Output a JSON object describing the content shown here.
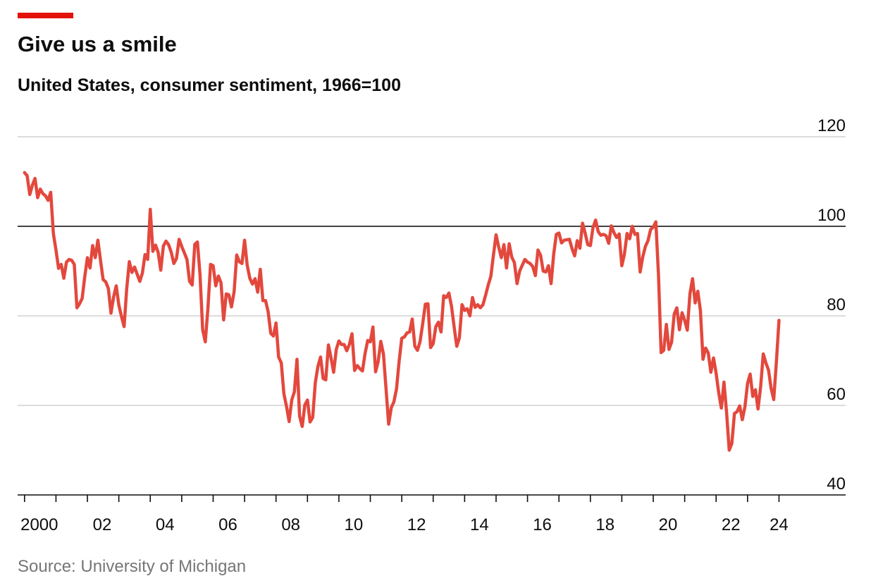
{
  "chart_data": {
    "type": "line",
    "title": "Give us a smile",
    "subtitle": "United States, consumer sentiment, 1966=100",
    "source": "Source: University of Michigan",
    "xlim": [
      1999.78,
      2026.12
    ],
    "ylim": [
      40,
      120
    ],
    "yticks": [
      40,
      60,
      80,
      100,
      120
    ],
    "reference_line": 100,
    "grid": true,
    "xticks": [
      {
        "value": 2000,
        "label": "2000"
      },
      {
        "value": 2002,
        "label": "02"
      },
      {
        "value": 2004,
        "label": "04"
      },
      {
        "value": 2006,
        "label": "06"
      },
      {
        "value": 2008,
        "label": "08"
      },
      {
        "value": 2010,
        "label": "10"
      },
      {
        "value": 2012,
        "label": "12"
      },
      {
        "value": 2014,
        "label": "14"
      },
      {
        "value": 2016,
        "label": "16"
      },
      {
        "value": 2018,
        "label": "18"
      },
      {
        "value": 2020,
        "label": "20"
      },
      {
        "value": 2022,
        "label": "22"
      },
      {
        "value": 2024,
        "label": "24"
      }
    ],
    "xminorticks": [
      2001,
      2003,
      2005,
      2007,
      2009,
      2011,
      2013,
      2015,
      2017,
      2019,
      2021,
      2023
    ],
    "x": [
      2000.0,
      2000.083,
      2000.167,
      2000.25,
      2000.333,
      2000.417,
      2000.5,
      2000.583,
      2000.667,
      2000.75,
      2000.833,
      2000.917,
      2001.0,
      2001.083,
      2001.167,
      2001.25,
      2001.333,
      2001.417,
      2001.5,
      2001.583,
      2001.667,
      2001.75,
      2001.833,
      2001.917,
      2002.0,
      2002.083,
      2002.167,
      2002.25,
      2002.333,
      2002.417,
      2002.5,
      2002.583,
      2002.667,
      2002.75,
      2002.833,
      2002.917,
      2003.0,
      2003.083,
      2003.167,
      2003.25,
      2003.333,
      2003.417,
      2003.5,
      2003.583,
      2003.667,
      2003.75,
      2003.833,
      2003.917,
      2004.0,
      2004.083,
      2004.167,
      2004.25,
      2004.333,
      2004.417,
      2004.5,
      2004.583,
      2004.667,
      2004.75,
      2004.833,
      2004.917,
      2005.0,
      2005.083,
      2005.167,
      2005.25,
      2005.333,
      2005.417,
      2005.5,
      2005.583,
      2005.667,
      2005.75,
      2005.833,
      2005.917,
      2006.0,
      2006.083,
      2006.167,
      2006.25,
      2006.333,
      2006.417,
      2006.5,
      2006.583,
      2006.667,
      2006.75,
      2006.833,
      2006.917,
      2007.0,
      2007.083,
      2007.167,
      2007.25,
      2007.333,
      2007.417,
      2007.5,
      2007.583,
      2007.667,
      2007.75,
      2007.833,
      2007.917,
      2008.0,
      2008.083,
      2008.167,
      2008.25,
      2008.333,
      2008.417,
      2008.5,
      2008.583,
      2008.667,
      2008.75,
      2008.833,
      2008.917,
      2009.0,
      2009.083,
      2009.167,
      2009.25,
      2009.333,
      2009.417,
      2009.5,
      2009.583,
      2009.667,
      2009.75,
      2009.833,
      2009.917,
      2010.0,
      2010.083,
      2010.167,
      2010.25,
      2010.333,
      2010.417,
      2010.5,
      2010.583,
      2010.667,
      2010.75,
      2010.833,
      2010.917,
      2011.0,
      2011.083,
      2011.167,
      2011.25,
      2011.333,
      2011.417,
      2011.5,
      2011.583,
      2011.667,
      2011.75,
      2011.833,
      2011.917,
      2012.0,
      2012.083,
      2012.167,
      2012.25,
      2012.333,
      2012.417,
      2012.5,
      2012.583,
      2012.667,
      2012.75,
      2012.833,
      2012.917,
      2013.0,
      2013.083,
      2013.167,
      2013.25,
      2013.333,
      2013.417,
      2013.5,
      2013.583,
      2013.667,
      2013.75,
      2013.833,
      2013.917,
      2014.0,
      2014.083,
      2014.167,
      2014.25,
      2014.333,
      2014.417,
      2014.5,
      2014.583,
      2014.667,
      2014.75,
      2014.833,
      2014.917,
      2015.0,
      2015.083,
      2015.167,
      2015.25,
      2015.333,
      2015.417,
      2015.5,
      2015.583,
      2015.667,
      2015.75,
      2015.833,
      2015.917,
      2016.0,
      2016.083,
      2016.167,
      2016.25,
      2016.333,
      2016.417,
      2016.5,
      2016.583,
      2016.667,
      2016.75,
      2016.833,
      2016.917,
      2017.0,
      2017.083,
      2017.167,
      2017.25,
      2017.333,
      2017.417,
      2017.5,
      2017.583,
      2017.667,
      2017.75,
      2017.833,
      2017.917,
      2018.0,
      2018.083,
      2018.167,
      2018.25,
      2018.333,
      2018.417,
      2018.5,
      2018.583,
      2018.667,
      2018.75,
      2018.833,
      2018.917,
      2019.0,
      2019.083,
      2019.167,
      2019.25,
      2019.333,
      2019.417,
      2019.5,
      2019.583,
      2019.667,
      2019.75,
      2019.833,
      2019.917,
      2020.0,
      2020.083,
      2020.167,
      2020.25,
      2020.333,
      2020.417,
      2020.5,
      2020.583,
      2020.667,
      2020.75,
      2020.833,
      2020.917,
      2021.0,
      2021.083,
      2021.167,
      2021.25,
      2021.333,
      2021.417,
      2021.5,
      2021.583,
      2021.667,
      2021.75,
      2021.833,
      2021.917,
      2022.0,
      2022.083,
      2022.167,
      2022.25,
      2022.333,
      2022.417,
      2022.5,
      2022.583,
      2022.667,
      2022.75,
      2022.833,
      2022.917,
      2023.0,
      2023.083,
      2023.167,
      2023.25,
      2023.333,
      2023.417,
      2023.5,
      2023.583,
      2023.667,
      2023.75,
      2023.833,
      2023.917,
      2024.0
    ],
    "series": [
      {
        "color": "#e3483d",
        "values": [
          112.0,
          111.3,
          107.1,
          109.2,
          110.7,
          106.4,
          108.3,
          107.3,
          106.8,
          105.8,
          107.6,
          98.4,
          94.7,
          90.6,
          91.5,
          88.4,
          92.0,
          92.6,
          92.4,
          91.5,
          81.8,
          82.7,
          83.9,
          88.8,
          93.0,
          90.7,
          95.7,
          93.0,
          96.9,
          92.4,
          88.1,
          87.6,
          86.1,
          80.6,
          84.2,
          86.7,
          82.4,
          79.9,
          77.6,
          86.0,
          92.1,
          89.7,
          90.9,
          89.3,
          87.7,
          89.6,
          93.7,
          92.6,
          103.8,
          94.4,
          95.8,
          94.2,
          90.2,
          95.6,
          96.7,
          95.9,
          94.2,
          91.7,
          92.8,
          97.1,
          95.5,
          94.1,
          92.6,
          87.7,
          86.9,
          96.0,
          96.5,
          89.1,
          76.9,
          74.2,
          81.6,
          91.5,
          91.2,
          86.7,
          88.9,
          87.4,
          79.1,
          84.9,
          84.7,
          82.0,
          85.4,
          93.6,
          92.1,
          91.7,
          96.9,
          91.3,
          88.4,
          87.1,
          88.3,
          85.3,
          90.4,
          83.4,
          83.4,
          80.9,
          76.1,
          75.5,
          78.4,
          70.8,
          69.5,
          62.6,
          59.8,
          56.4,
          61.2,
          63.0,
          70.3,
          57.6,
          55.3,
          60.1,
          61.2,
          56.3,
          57.3,
          65.1,
          68.7,
          70.8,
          66.0,
          65.7,
          73.5,
          70.6,
          67.4,
          72.5,
          74.4,
          73.6,
          73.6,
          72.2,
          73.6,
          76.0,
          67.8,
          68.9,
          68.2,
          67.7,
          71.6,
          74.5,
          74.2,
          77.5,
          67.5,
          69.8,
          74.3,
          71.5,
          63.7,
          55.8,
          59.5,
          60.8,
          63.7,
          69.9,
          75.0,
          75.3,
          76.2,
          76.4,
          79.3,
          73.2,
          72.3,
          74.3,
          78.3,
          82.6,
          82.7,
          72.9,
          73.8,
          77.6,
          78.6,
          76.4,
          84.5,
          84.1,
          85.1,
          82.1,
          77.5,
          73.2,
          75.1,
          82.5,
          81.2,
          81.6,
          80.0,
          84.1,
          81.9,
          82.5,
          81.8,
          82.5,
          84.6,
          86.9,
          88.8,
          93.6,
          98.1,
          95.4,
          93.0,
          95.9,
          90.7,
          96.1,
          93.1,
          91.9,
          87.2,
          90.0,
          91.3,
          92.6,
          92.0,
          91.7,
          91.0,
          89.0,
          94.7,
          93.5,
          90.0,
          89.8,
          91.2,
          87.2,
          93.8,
          98.2,
          98.5,
          96.3,
          96.9,
          97.0,
          97.1,
          95.0,
          93.4,
          96.8,
          95.1,
          100.7,
          98.5,
          95.9,
          95.7,
          99.7,
          101.4,
          98.8,
          98.0,
          98.2,
          97.9,
          96.2,
          100.1,
          98.6,
          97.5,
          98.3,
          91.2,
          93.8,
          98.4,
          97.2,
          100.0,
          98.2,
          98.4,
          89.8,
          93.2,
          95.5,
          96.8,
          99.3,
          99.8,
          101.0,
          89.1,
          71.8,
          72.3,
          78.1,
          72.5,
          74.1,
          80.4,
          81.8,
          76.9,
          80.7,
          79.0,
          76.8,
          84.9,
          88.3,
          82.9,
          85.5,
          81.2,
          70.3,
          72.8,
          71.7,
          67.4,
          70.6,
          67.2,
          62.8,
          59.4,
          65.2,
          58.4,
          50.0,
          51.5,
          58.2,
          58.6,
          59.9,
          56.8,
          59.7,
          64.9,
          67.0,
          62.0,
          63.5,
          59.2,
          64.2,
          71.5,
          69.5,
          67.9,
          63.8,
          61.3,
          69.7,
          79.0
        ]
      }
    ]
  }
}
